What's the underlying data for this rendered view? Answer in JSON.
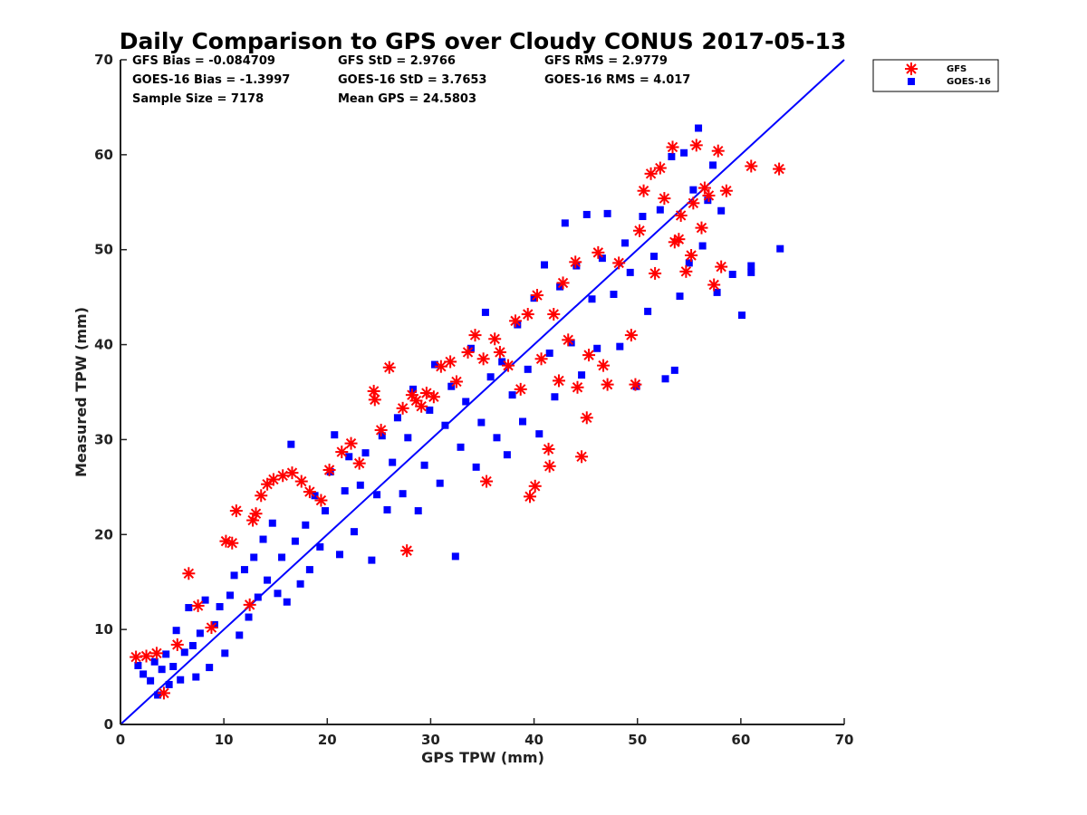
{
  "chart_data": {
    "type": "scatter",
    "title": "Daily Comparison to GPS over Cloudy CONUS 2017-05-13",
    "xlabel": "GPS TPW (mm)",
    "ylabel": "Measured TPW (mm)",
    "xlim": [
      0,
      70
    ],
    "ylim": [
      0,
      70
    ],
    "xticks": [
      "0",
      "10",
      "20",
      "30",
      "40",
      "50",
      "60",
      "70"
    ],
    "yticks": [
      "0",
      "10",
      "20",
      "30",
      "40",
      "50",
      "60",
      "70"
    ],
    "grid": false,
    "legend_position": "outside-top-right",
    "reference_line": {
      "type": "one-to-one",
      "color": "#0000ff"
    },
    "stats": [
      [
        "GFS Bias = -0.084709",
        "GFS StD = 2.9766",
        "GFS RMS = 2.9779"
      ],
      [
        "GOES-16 Bias = -1.3997",
        "GOES-16 StD = 3.7653",
        "GOES-16 RMS = 4.017"
      ],
      [
        "Sample Size = 7178",
        "Mean GPS = 24.5803"
      ]
    ],
    "series": [
      {
        "name": "GFS",
        "marker": "asterisk",
        "color": "#ff0000",
        "points": [
          [
            1.5,
            7.1
          ],
          [
            2.5,
            7.2
          ],
          [
            3.5,
            7.5
          ],
          [
            4.2,
            3.3
          ],
          [
            5.5,
            8.4
          ],
          [
            6.6,
            15.9
          ],
          [
            7.5,
            12.5
          ],
          [
            8.8,
            10.2
          ],
          [
            10.2,
            19.3
          ],
          [
            10.8,
            19.1
          ],
          [
            11.2,
            22.5
          ],
          [
            12.5,
            12.6
          ],
          [
            12.8,
            21.5
          ],
          [
            13.1,
            22.2
          ],
          [
            13.6,
            24.1
          ],
          [
            14.2,
            25.3
          ],
          [
            14.8,
            25.8
          ],
          [
            15.7,
            26.2
          ],
          [
            16.6,
            26.5
          ],
          [
            17.5,
            25.6
          ],
          [
            18.3,
            24.5
          ],
          [
            19.4,
            23.6
          ],
          [
            20.2,
            26.8
          ],
          [
            21.4,
            28.7
          ],
          [
            22.3,
            29.6
          ],
          [
            23.1,
            27.5
          ],
          [
            24.5,
            35.1
          ],
          [
            24.6,
            34.2
          ],
          [
            25.2,
            31.0
          ],
          [
            26.0,
            37.6
          ],
          [
            27.3,
            33.3
          ],
          [
            27.7,
            18.3
          ],
          [
            28.2,
            34.7
          ],
          [
            28.6,
            34.1
          ],
          [
            29.1,
            33.5
          ],
          [
            29.6,
            34.9
          ],
          [
            30.3,
            34.5
          ],
          [
            31.0,
            37.7
          ],
          [
            31.9,
            38.2
          ],
          [
            32.5,
            36.1
          ],
          [
            33.6,
            39.2
          ],
          [
            34.3,
            41.0
          ],
          [
            35.1,
            38.5
          ],
          [
            35.4,
            25.6
          ],
          [
            36.2,
            40.6
          ],
          [
            36.7,
            39.2
          ],
          [
            37.5,
            37.8
          ],
          [
            38.2,
            42.5
          ],
          [
            38.7,
            35.3
          ],
          [
            39.4,
            43.2
          ],
          [
            39.6,
            24.0
          ],
          [
            40.1,
            25.1
          ],
          [
            40.3,
            45.2
          ],
          [
            40.7,
            38.5
          ],
          [
            41.4,
            29.0
          ],
          [
            41.5,
            27.2
          ],
          [
            41.9,
            43.2
          ],
          [
            42.4,
            36.2
          ],
          [
            42.8,
            46.5
          ],
          [
            43.3,
            40.5
          ],
          [
            44.0,
            48.7
          ],
          [
            44.2,
            35.5
          ],
          [
            44.6,
            28.2
          ],
          [
            45.1,
            32.3
          ],
          [
            45.3,
            38.9
          ],
          [
            46.2,
            49.7
          ],
          [
            46.7,
            37.8
          ],
          [
            47.1,
            35.8
          ],
          [
            48.2,
            48.6
          ],
          [
            49.4,
            41.0
          ],
          [
            49.8,
            35.8
          ],
          [
            50.2,
            52.0
          ],
          [
            50.6,
            56.2
          ],
          [
            51.3,
            58.0
          ],
          [
            51.7,
            47.5
          ],
          [
            52.2,
            58.6
          ],
          [
            52.6,
            55.4
          ],
          [
            53.4,
            60.8
          ],
          [
            53.6,
            50.8
          ],
          [
            54.0,
            51.1
          ],
          [
            54.2,
            53.6
          ],
          [
            54.7,
            47.7
          ],
          [
            55.2,
            49.4
          ],
          [
            55.4,
            54.9
          ],
          [
            55.7,
            61.0
          ],
          [
            56.2,
            52.3
          ],
          [
            56.5,
            56.5
          ],
          [
            56.9,
            55.7
          ],
          [
            57.4,
            46.3
          ],
          [
            57.8,
            60.4
          ],
          [
            58.1,
            48.2
          ],
          [
            58.6,
            56.2
          ],
          [
            61.0,
            58.8
          ],
          [
            63.7,
            58.5
          ]
        ]
      },
      {
        "name": "GOES-16",
        "marker": "square",
        "color": "#0000ff",
        "points": [
          [
            1.7,
            6.2
          ],
          [
            2.2,
            5.3
          ],
          [
            2.9,
            4.6
          ],
          [
            3.3,
            6.6
          ],
          [
            3.6,
            3.1
          ],
          [
            4.0,
            5.8
          ],
          [
            4.4,
            7.4
          ],
          [
            4.7,
            4.2
          ],
          [
            5.1,
            6.1
          ],
          [
            5.4,
            9.9
          ],
          [
            5.8,
            4.7
          ],
          [
            6.2,
            7.6
          ],
          [
            6.6,
            12.3
          ],
          [
            7.0,
            8.3
          ],
          [
            7.3,
            5.0
          ],
          [
            7.7,
            9.6
          ],
          [
            8.2,
            13.1
          ],
          [
            8.6,
            6.0
          ],
          [
            9.1,
            10.5
          ],
          [
            9.6,
            12.4
          ],
          [
            10.1,
            7.5
          ],
          [
            10.6,
            13.6
          ],
          [
            11.0,
            15.7
          ],
          [
            11.5,
            9.4
          ],
          [
            12.0,
            16.3
          ],
          [
            12.4,
            11.3
          ],
          [
            12.9,
            17.6
          ],
          [
            13.3,
            13.4
          ],
          [
            13.8,
            19.5
          ],
          [
            14.2,
            15.2
          ],
          [
            14.7,
            21.2
          ],
          [
            15.2,
            13.8
          ],
          [
            15.6,
            17.6
          ],
          [
            16.1,
            12.9
          ],
          [
            16.5,
            29.5
          ],
          [
            16.9,
            19.3
          ],
          [
            17.4,
            14.8
          ],
          [
            17.9,
            21.0
          ],
          [
            18.3,
            16.3
          ],
          [
            18.8,
            24.1
          ],
          [
            19.3,
            18.7
          ],
          [
            19.8,
            22.5
          ],
          [
            20.3,
            26.6
          ],
          [
            20.7,
            30.5
          ],
          [
            21.2,
            17.9
          ],
          [
            21.7,
            24.6
          ],
          [
            22.1,
            28.2
          ],
          [
            22.6,
            20.3
          ],
          [
            23.2,
            25.2
          ],
          [
            23.7,
            28.6
          ],
          [
            24.3,
            17.3
          ],
          [
            24.8,
            24.2
          ],
          [
            25.3,
            30.4
          ],
          [
            25.8,
            22.6
          ],
          [
            26.3,
            27.6
          ],
          [
            26.8,
            32.3
          ],
          [
            27.3,
            24.3
          ],
          [
            27.8,
            30.2
          ],
          [
            28.3,
            35.3
          ],
          [
            28.8,
            22.5
          ],
          [
            29.4,
            27.3
          ],
          [
            29.9,
            33.1
          ],
          [
            30.4,
            37.9
          ],
          [
            30.9,
            25.4
          ],
          [
            31.4,
            31.5
          ],
          [
            32.0,
            35.6
          ],
          [
            32.4,
            17.7
          ],
          [
            32.9,
            29.2
          ],
          [
            33.4,
            34.0
          ],
          [
            33.9,
            39.6
          ],
          [
            34.4,
            27.1
          ],
          [
            34.9,
            31.8
          ],
          [
            35.3,
            43.4
          ],
          [
            35.8,
            36.6
          ],
          [
            36.4,
            30.2
          ],
          [
            36.9,
            38.2
          ],
          [
            37.4,
            28.4
          ],
          [
            37.9,
            34.7
          ],
          [
            38.4,
            42.1
          ],
          [
            38.9,
            31.9
          ],
          [
            39.4,
            37.4
          ],
          [
            40.0,
            44.9
          ],
          [
            40.5,
            30.6
          ],
          [
            41.0,
            48.4
          ],
          [
            41.5,
            39.1
          ],
          [
            42.0,
            34.5
          ],
          [
            42.5,
            46.1
          ],
          [
            43.0,
            52.8
          ],
          [
            43.6,
            40.2
          ],
          [
            44.1,
            48.3
          ],
          [
            44.6,
            36.8
          ],
          [
            45.1,
            53.7
          ],
          [
            45.6,
            44.8
          ],
          [
            46.1,
            39.6
          ],
          [
            46.6,
            49.1
          ],
          [
            47.1,
            53.8
          ],
          [
            47.7,
            45.3
          ],
          [
            48.3,
            39.8
          ],
          [
            48.8,
            50.7
          ],
          [
            49.3,
            47.6
          ],
          [
            49.9,
            35.6
          ],
          [
            50.5,
            53.5
          ],
          [
            51.0,
            43.5
          ],
          [
            51.6,
            49.3
          ],
          [
            52.2,
            54.2
          ],
          [
            52.7,
            36.4
          ],
          [
            53.3,
            59.8
          ],
          [
            53.6,
            37.3
          ],
          [
            54.1,
            45.1
          ],
          [
            54.5,
            60.2
          ],
          [
            55.0,
            48.6
          ],
          [
            55.4,
            56.3
          ],
          [
            55.9,
            62.8
          ],
          [
            56.3,
            50.4
          ],
          [
            56.8,
            55.2
          ],
          [
            57.3,
            58.9
          ],
          [
            57.7,
            45.5
          ],
          [
            58.1,
            54.1
          ],
          [
            59.2,
            47.4
          ],
          [
            60.1,
            43.1
          ],
          [
            61.0,
            48.3
          ],
          [
            61.0,
            47.6
          ],
          [
            63.8,
            50.1
          ]
        ]
      }
    ]
  },
  "legend": {
    "items": [
      {
        "label": "GFS",
        "marker": "asterisk",
        "color": "#ff0000"
      },
      {
        "label": "GOES-16",
        "marker": "square",
        "color": "#0000ff"
      }
    ]
  }
}
